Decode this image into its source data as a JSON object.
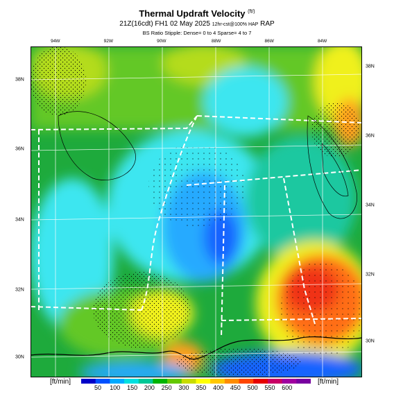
{
  "header": {
    "title": "Thermal Updraft Velocity",
    "title_unit": "(ft/)",
    "subtitle": "21Z(16cdt) FH1 02 May 2025",
    "subtitle_small": "12hr-cst@100% HAP",
    "subtitle_model": "RAP",
    "note": "BS Ratio Stipple: Dense= 0 to 4  Sparse= 4 to 7"
  },
  "axes": {
    "top_ticks": [
      {
        "label": "94W",
        "pos": 0.075
      },
      {
        "label": "92W",
        "pos": 0.235
      },
      {
        "label": "90W",
        "pos": 0.395
      },
      {
        "label": "88W",
        "pos": 0.56
      },
      {
        "label": "86W",
        "pos": 0.72
      },
      {
        "label": "84W",
        "pos": 0.88
      }
    ],
    "left_ticks": [
      {
        "label": "38N",
        "pos": 0.1
      },
      {
        "label": "36N",
        "pos": 0.31
      },
      {
        "label": "34N",
        "pos": 0.525
      },
      {
        "label": "32N",
        "pos": 0.735
      },
      {
        "label": "30N",
        "pos": 0.94
      }
    ],
    "right_ticks": [
      {
        "label": "38N",
        "pos": 0.06
      },
      {
        "label": "36N",
        "pos": 0.27
      },
      {
        "label": "34N",
        "pos": 0.48
      },
      {
        "label": "32N",
        "pos": 0.69
      },
      {
        "label": "30N",
        "pos": 0.89
      }
    ]
  },
  "legend": {
    "unit_left": "[ft/min]",
    "unit_right": "[ft/min]",
    "labels": [
      "50",
      "100",
      "150",
      "200",
      "250",
      "300",
      "350",
      "400",
      "450",
      "500",
      "550",
      "600"
    ],
    "colors": [
      "#0000c8",
      "#0050ff",
      "#00aaff",
      "#00e0e0",
      "#00c896",
      "#00b400",
      "#64c800",
      "#c8dc00",
      "#ffff00",
      "#ffc800",
      "#ff8c00",
      "#ff4600",
      "#e60000",
      "#c80064",
      "#a000a0",
      "#7800a0"
    ]
  },
  "map_colors": {
    "purple": "#6a5acd",
    "blue": "#1464ff",
    "lightblue": "#28aaff",
    "cyan": "#3ce6f0",
    "teal": "#1ec8a0",
    "green": "#1eaa3c",
    "lightgreen": "#64c828",
    "yellowgreen": "#b4dc1e",
    "yellow": "#f0f01e",
    "orange": "#ffa01e",
    "darkorange": "#ff6e14",
    "red": "#f03214",
    "gray": "#c8c8c8"
  }
}
